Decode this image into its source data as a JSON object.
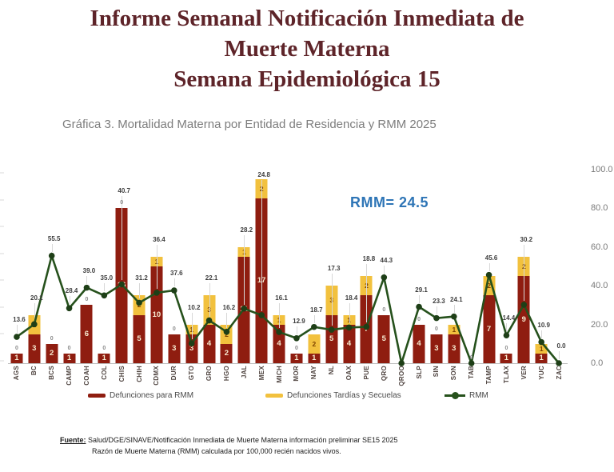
{
  "title": {
    "line1": "Informe Semanal  Notificación Inmediata de",
    "line2": "Muerte Materna",
    "line3": "Semana Epidemiológica 15"
  },
  "subtitle": "Gráfica 3. Mortalidad Materna por Entidad de Residencia y RMM 2025",
  "annotation": {
    "label": "RMM=",
    "value": "24.5"
  },
  "legend": [
    {
      "label": "Defunciones para RMM",
      "type": "bar",
      "color": "#8f1d10"
    },
    {
      "label": "Defunciones Tardías y Secuelas",
      "type": "bar",
      "color": "#f2c13e"
    },
    {
      "label": "RMM",
      "type": "line",
      "color": "#26511c"
    }
  ],
  "source": {
    "prefix": "Fuente:",
    "line1": "Salud/DGE/SINAVE/Notificación Inmediata de Muerte Materna información preliminar SE15 2025",
    "line2": "Razón de Muerte Materna (RMM) calculada por 100,000 recién nacidos vivos."
  },
  "colors": {
    "bar_red": "#8f1d10",
    "bar_yellow": "#f2c13e",
    "line_green": "#26511c",
    "marker_green": "#1e3f17",
    "title_maroon": "#5e2429",
    "annotation_blue": "#2e75b6",
    "subtitle_gray": "#7d7d7d"
  },
  "chart_data": {
    "type": "bar",
    "stacked": true,
    "title": "Gráfica 3. Mortalidad Materna por Entidad de Residencia y RMM 2025",
    "xlabel": "",
    "ylabel": "",
    "legend_position": "bottom",
    "grid": false,
    "categories": [
      "AGS",
      "BC",
      "BCS",
      "CAMP",
      "COAH",
      "COL",
      "CHIS",
      "CHIH",
      "CDMX",
      "DUR",
      "GTO",
      "GRO",
      "HGO",
      "JAL",
      "MEX",
      "MICH",
      "MOR",
      "NAY",
      "NL",
      "OAX",
      "PUE",
      "QRO",
      "QROO",
      "SLP",
      "SIN",
      "SON",
      "TAB",
      "TAMP",
      "TLAX",
      "VER",
      "YUC",
      "ZAC"
    ],
    "series": [
      {
        "name": "Defunciones para RMM",
        "type": "bar",
        "color": "#8f1d10",
        "values": [
          1,
          3,
          2,
          1,
          6,
          1,
          16,
          5,
          10,
          3,
          3,
          4,
          2,
          11,
          17,
          4,
          1,
          1,
          5,
          4,
          7,
          5,
          0,
          4,
          3,
          3,
          0,
          7,
          1,
          9,
          1,
          0
        ]
      },
      {
        "name": "Defunciones Tardías y Secuelas",
        "type": "bar",
        "color": "#f2c13e",
        "values": [
          0,
          2,
          0,
          0,
          0,
          0,
          0,
          2,
          1,
          0,
          1,
          3,
          2,
          1,
          2,
          1,
          0,
          2,
          3,
          1,
          2,
          0,
          0,
          0,
          0,
          1,
          0,
          2,
          0,
          2,
          1,
          0
        ]
      },
      {
        "name": "RMM",
        "type": "line",
        "color": "#26511c",
        "axis": "right",
        "values": [
          13.6,
          20.1,
          55.5,
          28.4,
          39.0,
          35.0,
          40.7,
          31.2,
          36.4,
          37.6,
          10.2,
          22.1,
          16.2,
          28.2,
          24.8,
          16.1,
          12.9,
          18.7,
          17.3,
          18.4,
          18.8,
          44.3,
          0.0,
          29.1,
          23.3,
          24.1,
          0.0,
          45.6,
          14.4,
          30.2,
          10.9,
          0.0
        ]
      }
    ],
    "rmm_labels": [
      "13.6",
      "20.1",
      "55.5",
      "28.4",
      "39.0",
      "35.0",
      "40.7",
      "31.2",
      "36.4",
      "37.6",
      "10.2",
      "22.1",
      "16.2",
      "28.2",
      "24.8",
      "16.1",
      "12.9",
      "18.7",
      "17.3",
      "18.4",
      "18.8",
      "44.3",
      "",
      "29.1",
      "23.3",
      "24.1",
      "",
      "45.6",
      "14.4",
      "30.2",
      "10.9",
      "0.0"
    ],
    "zero_label_states": [
      "AGS",
      "BCS",
      "CAMP",
      "COAH",
      "COL",
      "CHIS",
      "DUR",
      "MOR",
      "QRO",
      "SLP",
      "SIN",
      "TLAX",
      "TAB"
    ],
    "overall_rmm": 24.5,
    "right_axis": {
      "min": 0,
      "max": 100,
      "ticks": [
        "100.0",
        "80.0",
        "60.0",
        "40.0",
        "20.0",
        "0.0"
      ]
    },
    "left_axis": {
      "cropped": true,
      "implied_max_deaths": 20
    }
  }
}
